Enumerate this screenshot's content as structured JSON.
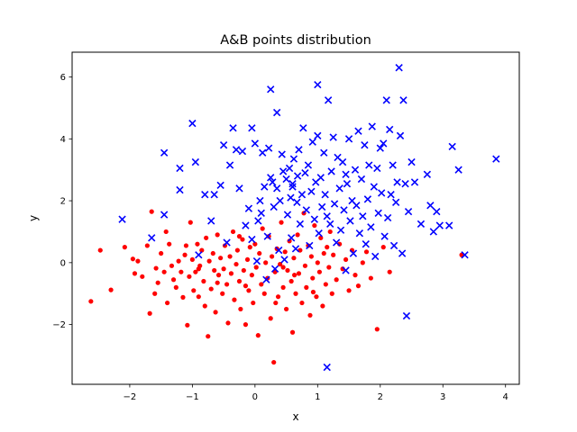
{
  "chart_data": {
    "type": "scatter",
    "title": "A&B points distribution",
    "xlabel": "x",
    "ylabel": "y",
    "xlim": [
      -2.92,
      4.22
    ],
    "ylim": [
      -3.93,
      6.8
    ],
    "xticks": [
      -2,
      -1,
      0,
      1,
      2,
      3,
      4
    ],
    "yticks": [
      -2,
      0,
      2,
      4,
      6
    ],
    "xtick_labels": [
      "−2",
      "−1",
      "0",
      "1",
      "2",
      "3",
      "4"
    ],
    "ytick_labels": [
      "−2",
      "0",
      "2",
      "4",
      "6"
    ],
    "grid": false,
    "legend": "none",
    "series": [
      {
        "marker": "circle",
        "color": "#ff0000",
        "points": [
          [
            -2.62,
            -1.25
          ],
          [
            -2.47,
            0.4
          ],
          [
            -2.3,
            -0.88
          ],
          [
            -2.08,
            0.5
          ],
          [
            -1.95,
            0.12
          ],
          [
            -1.92,
            -0.35
          ],
          [
            -1.87,
            0.05
          ],
          [
            -1.8,
            -0.45
          ],
          [
            -1.72,
            0.55
          ],
          [
            -1.68,
            -1.64
          ],
          [
            -1.65,
            1.65
          ],
          [
            -1.6,
            -1.0
          ],
          [
            -1.58,
            -0.18
          ],
          [
            -1.55,
            -0.65
          ],
          [
            -1.5,
            0.3
          ],
          [
            -1.45,
            -0.3
          ],
          [
            -1.42,
            1.0
          ],
          [
            -1.4,
            -1.3
          ],
          [
            -1.37,
            0.6
          ],
          [
            -1.33,
            -0.1
          ],
          [
            -1.3,
            -0.55
          ],
          [
            -1.26,
            -0.8
          ],
          [
            -1.22,
            0.05
          ],
          [
            -1.18,
            -0.3
          ],
          [
            -1.15,
            -1.12
          ],
          [
            -1.12,
            0.25
          ],
          [
            -1.08,
            -2.02
          ],
          [
            -1.05,
            -0.45
          ],
          [
            -1.03,
            1.3
          ],
          [
            -1.0,
            0.1
          ],
          [
            -0.98,
            -0.9
          ],
          [
            -0.95,
            -0.3
          ],
          [
            -0.92,
            0.6
          ],
          [
            -0.9,
            -1.1
          ],
          [
            -0.88,
            -0.1
          ],
          [
            -0.85,
            0.4
          ],
          [
            -0.82,
            -0.6
          ],
          [
            -0.8,
            -1.4
          ],
          [
            -0.78,
            0.8
          ],
          [
            -0.75,
            -2.38
          ],
          [
            -0.73,
            0.05
          ],
          [
            -0.7,
            -0.85
          ],
          [
            -0.67,
            0.3
          ],
          [
            -0.65,
            -0.25
          ],
          [
            -0.63,
            -1.6
          ],
          [
            -0.6,
            0.9
          ],
          [
            -0.58,
            -0.4
          ],
          [
            -0.55,
            0.15
          ],
          [
            -0.52,
            -1.0
          ],
          [
            -0.5,
            -0.2
          ],
          [
            -0.48,
            0.55
          ],
          [
            -0.45,
            -0.7
          ],
          [
            -0.43,
            -1.95
          ],
          [
            -0.4,
            0.2
          ],
          [
            -0.38,
            -0.35
          ],
          [
            -0.35,
            1.0
          ],
          [
            -0.33,
            -1.2
          ],
          [
            -0.3,
            -0.05
          ],
          [
            -0.28,
            0.4
          ],
          [
            -0.25,
            -0.6
          ],
          [
            -0.23,
            -1.5
          ],
          [
            -0.2,
            0.75
          ],
          [
            -0.18,
            -0.25
          ],
          [
            -0.15,
            -2.0
          ],
          [
            -0.12,
            0.1
          ],
          [
            -0.1,
            -0.9
          ],
          [
            -0.08,
            0.5
          ],
          [
            -0.05,
            -0.4
          ],
          [
            -0.03,
            -1.3
          ],
          [
            0.0,
            0.6
          ],
          [
            0.02,
            -0.15
          ],
          [
            0.05,
            -2.35
          ],
          [
            0.07,
            0.3
          ],
          [
            0.1,
            -0.7
          ],
          [
            0.12,
            1.1
          ],
          [
            0.15,
            -1.0
          ],
          [
            0.17,
            0.0
          ],
          [
            0.2,
            -0.5
          ],
          [
            0.22,
            0.85
          ],
          [
            0.25,
            -1.8
          ],
          [
            0.27,
            0.2
          ],
          [
            0.3,
            -3.22
          ],
          [
            0.32,
            -0.3
          ],
          [
            0.35,
            0.45
          ],
          [
            0.37,
            -1.1
          ],
          [
            0.4,
            -0.05
          ],
          [
            0.42,
            1.3
          ],
          [
            0.45,
            -0.8
          ],
          [
            0.48,
            0.35
          ],
          [
            0.5,
            -1.5
          ],
          [
            0.52,
            -0.25
          ],
          [
            0.55,
            0.7
          ],
          [
            0.58,
            -0.6
          ],
          [
            0.6,
            -2.25
          ],
          [
            0.62,
            0.15
          ],
          [
            0.65,
            -1.0
          ],
          [
            0.68,
            0.9
          ],
          [
            0.7,
            -0.35
          ],
          [
            0.72,
            0.4
          ],
          [
            0.75,
            -1.3
          ],
          [
            0.78,
            1.6
          ],
          [
            0.8,
            -0.1
          ],
          [
            0.82,
            -0.8
          ],
          [
            0.85,
            0.55
          ],
          [
            0.88,
            -1.7
          ],
          [
            0.9,
            0.2
          ],
          [
            0.92,
            -0.5
          ],
          [
            0.95,
            1.2
          ],
          [
            0.98,
            -1.1
          ],
          [
            1.0,
            0.0
          ],
          [
            1.03,
            -0.3
          ],
          [
            1.05,
            0.8
          ],
          [
            1.08,
            -1.4
          ],
          [
            1.1,
            0.3
          ],
          [
            1.13,
            -0.7
          ],
          [
            1.15,
            0.5
          ],
          [
            1.18,
            -0.15
          ],
          [
            1.2,
            1.0
          ],
          [
            1.23,
            -1.0
          ],
          [
            1.25,
            0.25
          ],
          [
            1.3,
            -0.55
          ],
          [
            1.35,
            0.6
          ],
          [
            1.4,
            -0.2
          ],
          [
            1.45,
            0.1
          ],
          [
            1.5,
            -0.9
          ],
          [
            1.55,
            0.4
          ],
          [
            1.6,
            -0.4
          ],
          [
            1.65,
            -0.75
          ],
          [
            1.72,
            0.0
          ],
          [
            1.78,
            0.35
          ],
          [
            1.85,
            -0.5
          ],
          [
            1.95,
            -2.15
          ],
          [
            2.05,
            0.5
          ],
          [
            2.15,
            -0.3
          ],
          [
            3.3,
            0.25
          ],
          [
            -1.1,
            0.55
          ],
          [
            -0.6,
            -0.65
          ],
          [
            0.33,
            -1.3
          ],
          [
            0.93,
            -0.95
          ],
          [
            -0.25,
            0.85
          ],
          [
            0.45,
            -0.15
          ],
          [
            -0.9,
            -0.2
          ],
          [
            0.63,
            -0.4
          ],
          [
            -0.15,
            -0.75
          ]
        ]
      },
      {
        "marker": "x",
        "color": "#0000ff",
        "points": [
          [
            -2.12,
            1.4
          ],
          [
            -1.65,
            0.8
          ],
          [
            -1.45,
            1.55
          ],
          [
            -1.45,
            3.55
          ],
          [
            -1.2,
            2.35
          ],
          [
            -1.2,
            3.05
          ],
          [
            -1.0,
            4.5
          ],
          [
            -0.95,
            3.25
          ],
          [
            -0.9,
            0.25
          ],
          [
            -0.8,
            2.2
          ],
          [
            -0.7,
            1.35
          ],
          [
            -0.65,
            2.2
          ],
          [
            -0.55,
            2.5
          ],
          [
            -0.5,
            3.8
          ],
          [
            -0.45,
            0.65
          ],
          [
            -0.4,
            3.15
          ],
          [
            -0.35,
            4.35
          ],
          [
            -0.3,
            3.65
          ],
          [
            -0.25,
            2.4
          ],
          [
            -0.2,
            3.6
          ],
          [
            -0.15,
            1.2
          ],
          [
            -0.1,
            1.75
          ],
          [
            -0.05,
            4.35
          ],
          [
            0.0,
            3.85
          ],
          [
            0.03,
            0.05
          ],
          [
            0.05,
            1.35
          ],
          [
            0.08,
            2.0
          ],
          [
            0.1,
            1.6
          ],
          [
            0.12,
            3.55
          ],
          [
            0.15,
            2.45
          ],
          [
            0.18,
            -0.55
          ],
          [
            0.2,
            0.85
          ],
          [
            0.22,
            3.7
          ],
          [
            0.25,
            2.75
          ],
          [
            0.25,
            5.6
          ],
          [
            0.28,
            2.6
          ],
          [
            0.3,
            1.8
          ],
          [
            0.32,
            -0.2
          ],
          [
            0.35,
            2.4
          ],
          [
            0.35,
            4.85
          ],
          [
            0.38,
            0.4
          ],
          [
            0.4,
            2.0
          ],
          [
            0.43,
            3.5
          ],
          [
            0.45,
            2.95
          ],
          [
            0.47,
            0.1
          ],
          [
            0.5,
            2.7
          ],
          [
            0.52,
            1.55
          ],
          [
            0.55,
            3.05
          ],
          [
            0.57,
            2.1
          ],
          [
            0.58,
            0.8
          ],
          [
            0.6,
            2.45
          ],
          [
            0.62,
            3.35
          ],
          [
            0.65,
            0.45
          ],
          [
            0.67,
            1.95
          ],
          [
            0.68,
            2.8
          ],
          [
            0.7,
            3.65
          ],
          [
            0.72,
            1.25
          ],
          [
            0.75,
            2.2
          ],
          [
            0.77,
            4.35
          ],
          [
            0.8,
            2.9
          ],
          [
            0.82,
            1.7
          ],
          [
            0.85,
            3.15
          ],
          [
            0.87,
            0.55
          ],
          [
            0.9,
            2.3
          ],
          [
            0.92,
            3.9
          ],
          [
            0.95,
            1.4
          ],
          [
            0.97,
            2.6
          ],
          [
            1.0,
            5.75
          ],
          [
            1.0,
            4.1
          ],
          [
            1.02,
            0.95
          ],
          [
            1.05,
            2.75
          ],
          [
            1.07,
            1.8
          ],
          [
            1.1,
            3.55
          ],
          [
            1.12,
            2.2
          ],
          [
            1.15,
            -3.38
          ],
          [
            1.17,
            5.25
          ],
          [
            1.2,
            1.25
          ],
          [
            1.22,
            2.95
          ],
          [
            1.25,
            4.05
          ],
          [
            1.27,
            1.9
          ],
          [
            1.3,
            0.65
          ],
          [
            1.32,
            3.4
          ],
          [
            1.35,
            2.4
          ],
          [
            1.37,
            1.05
          ],
          [
            1.4,
            3.25
          ],
          [
            1.42,
            1.7
          ],
          [
            1.45,
            -0.25
          ],
          [
            1.47,
            2.55
          ],
          [
            1.5,
            4.0
          ],
          [
            1.52,
            1.35
          ],
          [
            1.55,
            2.0
          ],
          [
            1.57,
            0.3
          ],
          [
            1.6,
            3.0
          ],
          [
            1.62,
            1.85
          ],
          [
            1.65,
            4.25
          ],
          [
            1.67,
            0.95
          ],
          [
            1.7,
            2.7
          ],
          [
            1.72,
            1.5
          ],
          [
            1.75,
            3.8
          ],
          [
            1.77,
            0.6
          ],
          [
            1.8,
            2.05
          ],
          [
            1.82,
            3.15
          ],
          [
            1.85,
            1.15
          ],
          [
            1.87,
            4.4
          ],
          [
            1.9,
            2.45
          ],
          [
            1.92,
            0.2
          ],
          [
            1.95,
            3.05
          ],
          [
            1.97,
            1.6
          ],
          [
            2.0,
            3.7
          ],
          [
            2.02,
            2.25
          ],
          [
            2.05,
            3.85
          ],
          [
            2.07,
            0.85
          ],
          [
            2.1,
            5.25
          ],
          [
            2.12,
            1.45
          ],
          [
            2.15,
            4.3
          ],
          [
            2.17,
            2.2
          ],
          [
            2.2,
            3.15
          ],
          [
            2.22,
            0.55
          ],
          [
            2.25,
            1.95
          ],
          [
            2.27,
            2.6
          ],
          [
            2.3,
            6.3
          ],
          [
            2.32,
            4.1
          ],
          [
            2.35,
            0.3
          ],
          [
            2.37,
            5.25
          ],
          [
            2.4,
            2.55
          ],
          [
            2.42,
            -1.72
          ],
          [
            2.45,
            1.65
          ],
          [
            2.5,
            3.25
          ],
          [
            2.55,
            2.6
          ],
          [
            2.65,
            1.25
          ],
          [
            2.75,
            2.85
          ],
          [
            2.8,
            1.85
          ],
          [
            2.85,
            1.0
          ],
          [
            2.9,
            1.65
          ],
          [
            2.95,
            1.2
          ],
          [
            3.1,
            1.2
          ],
          [
            3.15,
            3.75
          ],
          [
            3.25,
            3.0
          ],
          [
            3.35,
            0.25
          ],
          [
            3.85,
            3.35
          ],
          [
            0.6,
            2.55
          ],
          [
            1.45,
            2.85
          ],
          [
            -0.05,
            0.75
          ],
          [
            1.15,
            1.5
          ]
        ]
      }
    ]
  }
}
